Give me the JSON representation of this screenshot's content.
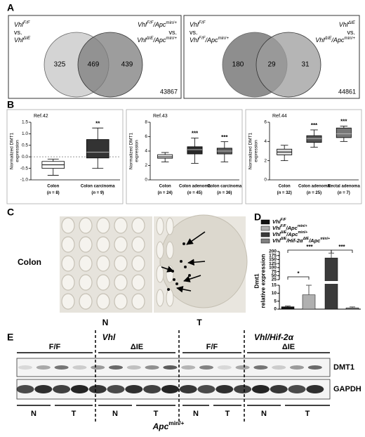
{
  "panel_labels": [
    "A",
    "B",
    "C",
    "D",
    "E"
  ],
  "panel_a": {
    "venns": [
      {
        "set_a": [
          [
            {
              "text": "Vhl",
              "italic": true
            },
            {
              "text": "F/F",
              "italic": true,
              "sup": true
            }
          ],
          [
            {
              "text": "vs."
            }
          ],
          [
            {
              "text": "Vhl",
              "italic": true
            },
            {
              "text": "ΔIE",
              "italic": true,
              "sup": true
            }
          ]
        ],
        "set_b": [
          [
            {
              "text": "Vhl",
              "italic": true
            },
            {
              "text": "F/F",
              "italic": true,
              "sup": true
            },
            {
              "text": "/Apc",
              "italic": true
            },
            {
              "text": "min/+",
              "sup": true
            }
          ],
          [
            {
              "text": "vs."
            }
          ],
          [
            {
              "text": "Vhl",
              "italic": true
            },
            {
              "text": "ΔIE",
              "italic": true,
              "sup": true
            },
            {
              "text": "/Apc",
              "italic": true
            },
            {
              "text": "min/+",
              "sup": true
            }
          ]
        ],
        "only_a": 325,
        "both": 469,
        "only_b": 439,
        "id": "43867"
      },
      {
        "set_a": [
          [
            {
              "text": "Vhl",
              "italic": true
            },
            {
              "text": "F/F",
              "italic": true,
              "sup": true
            }
          ],
          [
            {
              "text": "vs."
            }
          ],
          [
            {
              "text": "Vhl",
              "italic": true
            },
            {
              "text": "F/F",
              "italic": true,
              "sup": true
            },
            {
              "text": "/Apc",
              "italic": true
            },
            {
              "text": "min/+",
              "sup": true
            }
          ]
        ],
        "set_b": [
          [
            {
              "text": "Vhl",
              "italic": true
            },
            {
              "text": "ΔIE",
              "italic": true,
              "sup": true
            }
          ],
          [
            {
              "text": "vs."
            }
          ],
          [
            {
              "text": "Vhl",
              "italic": true
            },
            {
              "text": "ΔIE",
              "italic": true,
              "sup": true
            },
            {
              "text": "/Apc",
              "italic": true
            },
            {
              "text": "min/+",
              "sup": true
            }
          ]
        ],
        "only_a": 180,
        "both": 29,
        "only_b": 31,
        "id": "44861"
      }
    ]
  },
  "panel_b": {
    "charts": [
      {
        "type": "box",
        "title": "Ref.42",
        "ylabel": [
          "Normalized DMT1",
          "expression"
        ],
        "ylim": [
          -1,
          1.5
        ],
        "yticks": [
          {
            "value": -1,
            "label": "-1.0"
          },
          {
            "value": -0.5,
            "label": "-0.5"
          },
          {
            "value": 0,
            "label": "0.0"
          },
          0.5,
          {
            "value": 1,
            "label": "1.0"
          },
          1.5
        ],
        "reference_line": 0,
        "categories": [
          "Colon",
          "Colon carcinoma"
        ],
        "n_labels": [
          [
            {
              "text": "("
            },
            {
              "text": "n",
              "italic": true
            },
            {
              "text": " = 8)"
            }
          ],
          [
            {
              "text": "("
            },
            {
              "text": "n",
              "italic": true
            },
            {
              "text": " = 9)"
            }
          ]
        ],
        "boxes": [
          {
            "low": -0.8,
            "q1": -0.5,
            "median": -0.35,
            "q3": -0.2,
            "high": -0.1
          },
          {
            "low": -0.5,
            "q1": -0.05,
            "median": 0.2,
            "q3": 0.75,
            "high": 1.25
          }
        ],
        "colors": [
          "#ffffff",
          "#333333"
        ],
        "significance": [
          null,
          "**"
        ]
      },
      {
        "type": "box",
        "title": "Ref.43",
        "ylabel": [
          "Normalized DMT1",
          "expression"
        ],
        "ylim": [
          0,
          8
        ],
        "yticks": [
          0,
          2,
          4,
          6,
          8
        ],
        "categories": [
          "Colon",
          "Colon adenoma",
          "Colon carcinoma"
        ],
        "n_labels": [
          [
            {
              "text": "("
            },
            {
              "text": "n",
              "italic": true
            },
            {
              "text": " = 24)"
            }
          ],
          [
            {
              "text": "("
            },
            {
              "text": "n",
              "italic": true
            },
            {
              "text": " = 45)"
            }
          ],
          [
            {
              "text": "("
            },
            {
              "text": "n",
              "italic": true
            },
            {
              "text": " = 36)"
            }
          ]
        ],
        "boxes": [
          {
            "low": 2.5,
            "q1": 3.0,
            "median": 3.2,
            "q3": 3.5,
            "high": 3.8
          },
          {
            "low": 2.3,
            "q1": 3.6,
            "median": 4.2,
            "q3": 4.6,
            "high": 5.8
          },
          {
            "low": 2.5,
            "q1": 3.6,
            "median": 4.0,
            "q3": 4.4,
            "high": 5.3
          }
        ],
        "colors": [
          "#f0f0f0",
          "#2b2b2b",
          "#5a5a5a"
        ],
        "significance": [
          null,
          "***",
          "***"
        ]
      },
      {
        "type": "box",
        "title": "Ref.44",
        "ylabel": [
          "Normalized DMT1",
          "expression"
        ],
        "ylim": [
          0,
          6
        ],
        "yticks": [
          0,
          2,
          4,
          6
        ],
        "categories": [
          "Colon",
          "Colon adenoma",
          "Rectal adenoma"
        ],
        "n_labels": [
          [
            {
              "text": "("
            },
            {
              "text": "n",
              "italic": true
            },
            {
              "text": " = 32)"
            }
          ],
          [
            {
              "text": "("
            },
            {
              "text": "n",
              "italic": true
            },
            {
              "text": " = 25)"
            }
          ],
          [
            {
              "text": "("
            },
            {
              "text": "n",
              "italic": true
            },
            {
              "text": " = 7)"
            }
          ]
        ],
        "boxes": [
          {
            "low": 2.0,
            "q1": 2.6,
            "median": 2.9,
            "q3": 3.2,
            "high": 3.6
          },
          {
            "low": 3.4,
            "q1": 3.9,
            "median": 4.3,
            "q3": 4.6,
            "high": 5.2
          },
          {
            "low": 4.0,
            "q1": 4.4,
            "median": 4.8,
            "q3": 5.4,
            "high": 5.6
          }
        ],
        "colors": [
          "#d9d9d9",
          "#555555",
          "#777777"
        ],
        "significance": [
          null,
          "***",
          "***"
        ]
      }
    ]
  },
  "panel_c": {
    "row_label": "Colon",
    "columns": [
      "N",
      "T"
    ]
  },
  "panel_d": {
    "chart": {
      "type": "bar",
      "ylabel": [
        "Dmt1",
        "relative expression"
      ],
      "ylim": [
        0,
        200
      ],
      "yticks": [
        0,
        5,
        10,
        15,
        25,
        50,
        75,
        100,
        125,
        150,
        175,
        200
      ],
      "axis_break": [
        15,
        25
      ],
      "series": [
        {
          "name": [
            {
              "text": "Vhl",
              "italic": true
            },
            {
              "text": "F/F",
              "italic": true,
              "sup": true
            }
          ],
          "color": "#111111",
          "values": [
            1.5
          ],
          "errors": [
            0.5
          ]
        },
        {
          "name": [
            {
              "text": "Vhl",
              "italic": true
            },
            {
              "text": "F/F",
              "italic": true,
              "sup": true
            },
            {
              "text": "/Apc",
              "italic": true
            },
            {
              "text": "min/+",
              "sup": true
            }
          ],
          "color": "#b0b0b0",
          "values": [
            9
          ],
          "errors": [
            6
          ]
        },
        {
          "name": [
            {
              "text": "Vhl",
              "italic": true
            },
            {
              "text": "ΔIE",
              "italic": true,
              "sup": true
            },
            {
              "text": "/Apc",
              "italic": true
            },
            {
              "text": "min/+",
              "sup": true
            }
          ],
          "color": "#3a3a3a",
          "values": [
            160
          ],
          "errors": [
            30
          ]
        },
        {
          "name": [
            {
              "text": "Vhl",
              "italic": true
            },
            {
              "text": "ΔIE",
              "italic": true,
              "sup": true
            },
            {
              "text": "/Hif-2α",
              "italic": true
            },
            {
              "text": "ΔIE",
              "italic": true,
              "sup": true
            },
            {
              "text": "/Apc",
              "italic": true
            },
            {
              "text": "min/+",
              "sup": true
            }
          ],
          "color": "#808080",
          "values": [
            0.8
          ],
          "errors": [
            0.6
          ]
        }
      ],
      "significance": [
        "*",
        "***",
        "***"
      ]
    }
  },
  "panel_e": {
    "genotypes": [
      "Vhl",
      "Vhl/Hif-2α"
    ],
    "groups": [
      "F/F",
      "ΔIE",
      "F/F",
      "ΔIE"
    ],
    "blots": [
      "DMT1",
      "GAPDH"
    ],
    "lanes": [
      "N",
      "T",
      "N",
      "T",
      "N",
      "T",
      "N",
      "T"
    ],
    "treatment": [
      {
        "text": "Apc",
        "italic": true
      },
      {
        "text": "min/+",
        "sup": true
      }
    ]
  }
}
